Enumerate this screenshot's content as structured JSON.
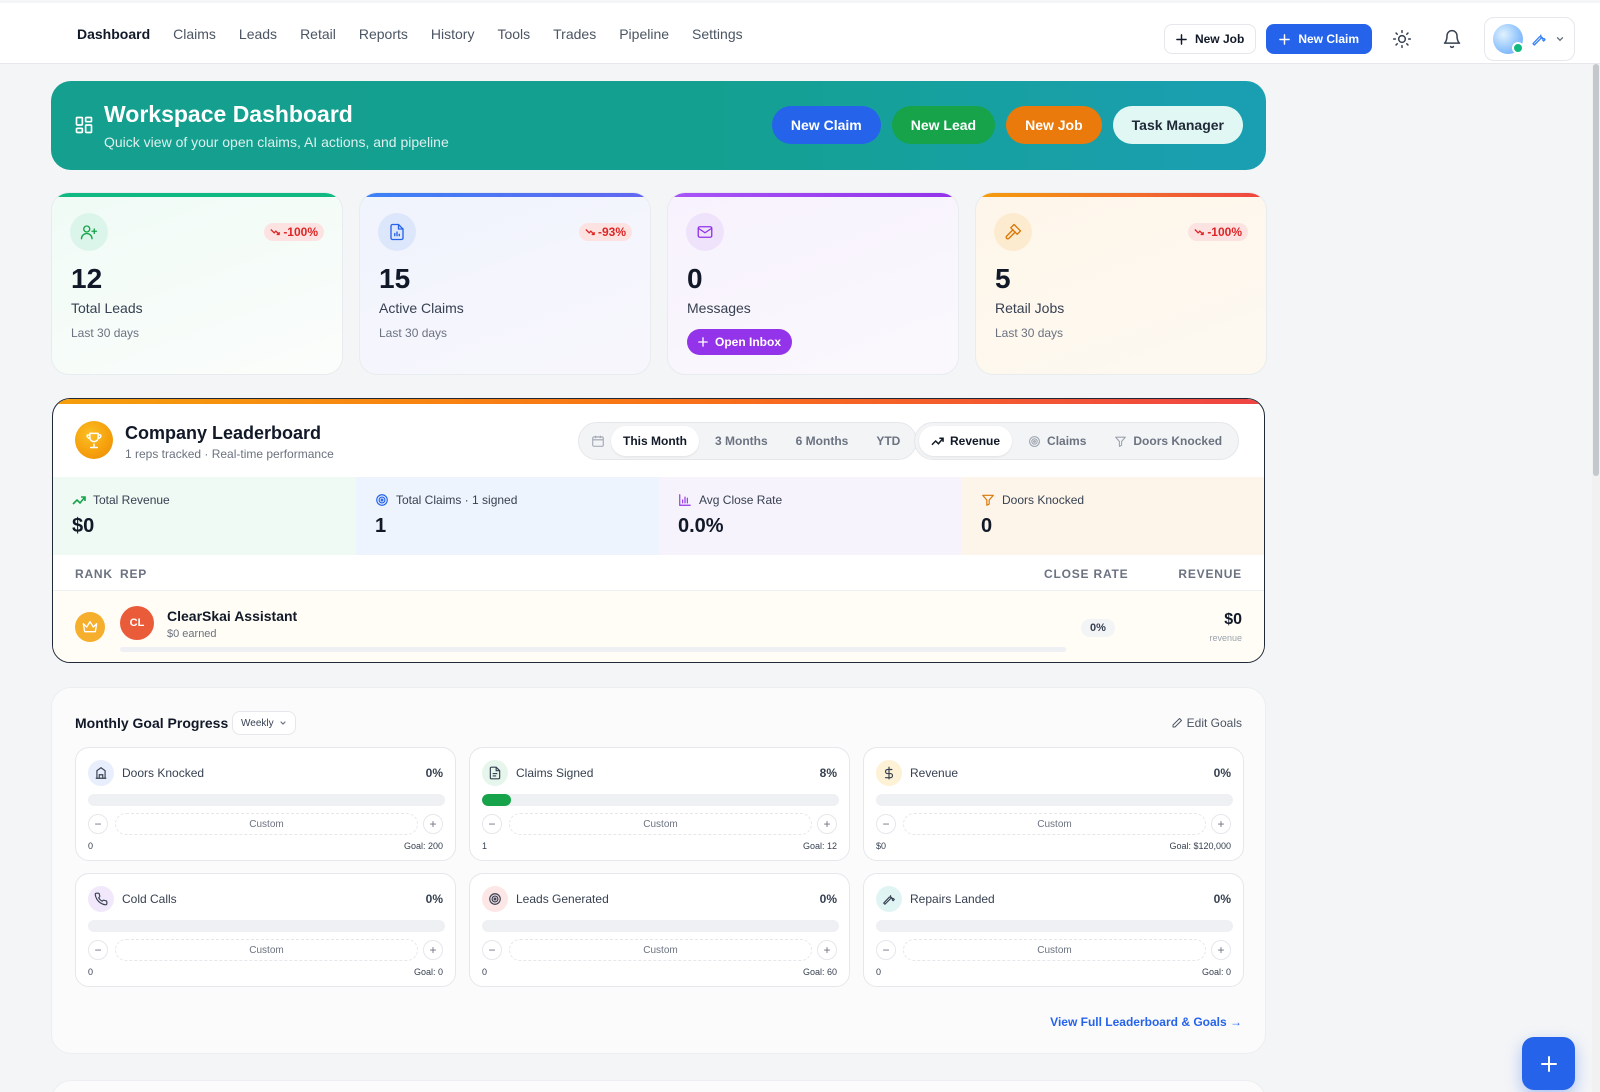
{
  "nav": {
    "items": [
      {
        "label": "Dashboard",
        "active": true
      },
      {
        "label": "Claims"
      },
      {
        "label": "Leads"
      },
      {
        "label": "Retail"
      },
      {
        "label": "Reports"
      },
      {
        "label": "History"
      },
      {
        "label": "Tools"
      },
      {
        "label": "Trades"
      },
      {
        "label": "Pipeline"
      },
      {
        "label": "Settings"
      }
    ],
    "new_job": "New Job",
    "new_claim": "New Claim"
  },
  "hero": {
    "title": "Workspace Dashboard",
    "subtitle": "Quick view of your open claims, AI actions, and pipeline",
    "buttons": {
      "new_claim": "New Claim",
      "new_lead": "New Lead",
      "new_job": "New Job",
      "task_manager": "Task Manager"
    }
  },
  "stats": [
    {
      "value": "12",
      "label": "Total Leads",
      "sub": "Last 30 days",
      "trend": "-100%",
      "accent": "#10b981"
    },
    {
      "value": "15",
      "label": "Active Claims",
      "sub": "Last 30 days",
      "trend": "-93%",
      "accent": "#3b82f6"
    },
    {
      "value": "0",
      "label": "Messages",
      "action": "Open Inbox",
      "accent": "#a855f7"
    },
    {
      "value": "5",
      "label": "Retail Jobs",
      "sub": "Last 30 days",
      "trend": "-100%",
      "accent": "#f59e0b"
    }
  ],
  "leaderboard": {
    "title": "Company Leaderboard",
    "subtitle": "1 reps tracked · Real-time performance",
    "periods": [
      "This Month",
      "3 Months",
      "6 Months",
      "YTD"
    ],
    "active_period": "This Month",
    "metrics": [
      "Revenue",
      "Claims",
      "Doors Knocked"
    ],
    "active_metric": "Revenue",
    "kpis": [
      {
        "label": "Total Revenue",
        "value": "$0"
      },
      {
        "label": "Total Claims · 1 signed",
        "value": "1"
      },
      {
        "label": "Avg Close Rate",
        "value": "0.0%"
      },
      {
        "label": "Doors Knocked",
        "value": "0"
      }
    ],
    "columns": {
      "rank": "RANK",
      "rep": "REP",
      "close_rate": "CLOSE RATE",
      "revenue": "REVENUE"
    },
    "rows": [
      {
        "initials": "CL",
        "name": "ClearSkai Assistant",
        "earned": "$0 earned",
        "close_rate": "0%",
        "revenue": "$0",
        "revenue_label": "revenue",
        "progress": 0
      }
    ]
  },
  "goals": {
    "title": "Monthly Goal Progress",
    "period": "Weekly",
    "edit": "Edit Goals",
    "view_all": "View Full Leaderboard & Goals →",
    "custom_label": "Custom",
    "items": [
      {
        "label": "Doors Knocked",
        "percent": "0%",
        "progress": 0,
        "current": "0",
        "goal": "Goal: 200",
        "icon": "building-icon"
      },
      {
        "label": "Claims Signed",
        "percent": "8%",
        "progress": 0.08,
        "current": "1",
        "goal": "Goal: 12",
        "icon": "document-icon"
      },
      {
        "label": "Revenue",
        "percent": "0%",
        "progress": 0,
        "current": "$0",
        "goal": "Goal: $120,000",
        "icon": "dollar-icon"
      },
      {
        "label": "Cold Calls",
        "percent": "0%",
        "progress": 0,
        "current": "0",
        "goal": "Goal: 0",
        "icon": "phone-icon"
      },
      {
        "label": "Leads Generated",
        "percent": "0%",
        "progress": 0,
        "current": "0",
        "goal": "Goal: 60",
        "icon": "target-icon"
      },
      {
        "label": "Repairs Landed",
        "percent": "0%",
        "progress": 0,
        "current": "0",
        "goal": "Goal: 0",
        "icon": "wrench-icon"
      }
    ]
  }
}
